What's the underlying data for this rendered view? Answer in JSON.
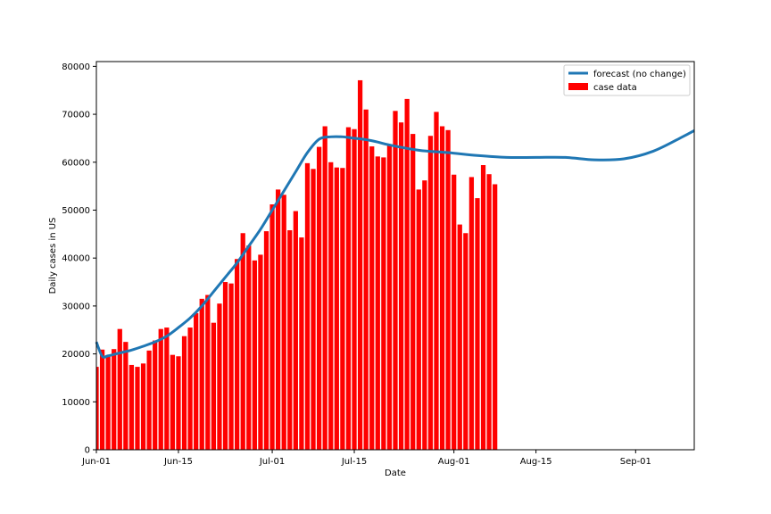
{
  "chart_data": {
    "type": "bar",
    "title": "",
    "xlabel": "Date",
    "ylabel": "Daily cases in US",
    "ylim": [
      0,
      81000
    ],
    "xlim_days": [
      0,
      102
    ],
    "grid": false,
    "legend_position": "top-right",
    "x_ticks": [
      {
        "day": 0,
        "label": "Jun-01"
      },
      {
        "day": 14,
        "label": "Jun-15"
      },
      {
        "day": 30,
        "label": "Jul-01"
      },
      {
        "day": 44,
        "label": "Jul-15"
      },
      {
        "day": 61,
        "label": "Aug-01"
      },
      {
        "day": 75,
        "label": "Aug-15"
      },
      {
        "day": 92,
        "label": "Sep-01"
      }
    ],
    "y_ticks": [
      0,
      10000,
      20000,
      30000,
      40000,
      50000,
      60000,
      70000,
      80000
    ],
    "bar_series": {
      "name": "case data",
      "color": "#ff0000",
      "days": [
        0,
        1,
        2,
        3,
        4,
        5,
        6,
        7,
        8,
        9,
        10,
        11,
        12,
        13,
        14,
        15,
        16,
        17,
        18,
        19,
        20,
        21,
        22,
        23,
        24,
        25,
        26,
        27,
        28,
        29,
        30,
        31,
        32,
        33,
        34,
        35,
        36,
        37,
        38,
        39,
        40,
        41,
        42,
        43,
        44,
        45,
        46,
        47,
        48,
        49,
        50,
        51,
        52,
        53,
        54,
        55,
        56,
        57,
        58,
        59,
        60,
        61,
        62,
        63,
        64,
        65,
        66,
        67,
        68,
        69
      ],
      "values": [
        17300,
        20900,
        19500,
        21000,
        25200,
        22500,
        17700,
        17300,
        18000,
        20700,
        22800,
        25200,
        25500,
        19800,
        19500,
        23700,
        25500,
        28500,
        31500,
        32300,
        26500,
        30500,
        35000,
        34700,
        39800,
        45200,
        42600,
        39500,
        40700,
        45600,
        51200,
        54300,
        53200,
        45800,
        49800,
        44300,
        59800,
        58600,
        63200,
        67500,
        60000,
        58900,
        58800,
        67300,
        66900,
        77100,
        71000,
        63300,
        61200,
        61000,
        63600,
        70700,
        68300,
        73200,
        65900,
        54300,
        56200,
        65500,
        70500,
        67500,
        66700,
        57400,
        47000,
        45200,
        56900,
        52500,
        59400,
        57500,
        55400,
        0
      ]
    },
    "line_series": {
      "name": "forecast (no change)",
      "color": "#1f77b4",
      "days": [
        0,
        1,
        2,
        4,
        6,
        8,
        10,
        12,
        14,
        16,
        18,
        20,
        22,
        24,
        26,
        28,
        30,
        32,
        34,
        36,
        38,
        40,
        42,
        44,
        46,
        48,
        50,
        55,
        60,
        65,
        70,
        75,
        80,
        85,
        90,
        95,
        100,
        102
      ],
      "values": [
        22500,
        19500,
        19600,
        20200,
        20800,
        21600,
        22500,
        23700,
        25500,
        27500,
        30000,
        33000,
        36000,
        39000,
        42500,
        46000,
        50000,
        54000,
        58000,
        62000,
        64800,
        65300,
        65300,
        65000,
        64700,
        64200,
        63600,
        62500,
        62000,
        61400,
        61000,
        61000,
        61000,
        60500,
        60700,
        62300,
        65300,
        66600
      ]
    }
  }
}
